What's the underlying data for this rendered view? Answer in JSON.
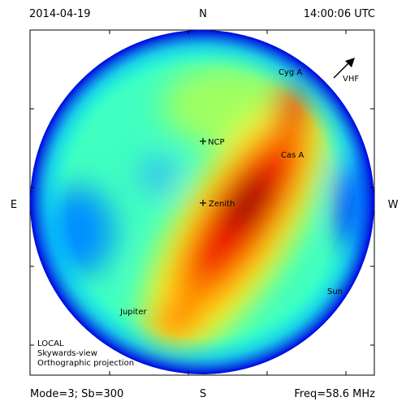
{
  "header": {
    "date": "2014-04-19",
    "north": "N",
    "time": "14:00:06 UTC"
  },
  "compass": {
    "east": "E",
    "west": "W",
    "south": "S"
  },
  "footer": {
    "mode": "Mode=3; Sb=300",
    "freq": "Freq=58.6 MHz"
  },
  "sources": {
    "cyg_a": "Cyg A",
    "vhf": "VHF",
    "ncp": "NCP",
    "cas_a": "Cas A",
    "zenith": "Zenith",
    "sun": "Sun",
    "jupiter": "Jupiter"
  },
  "note": [
    "LOCAL",
    "Skywards-view",
    "Orthographic projection"
  ]
}
